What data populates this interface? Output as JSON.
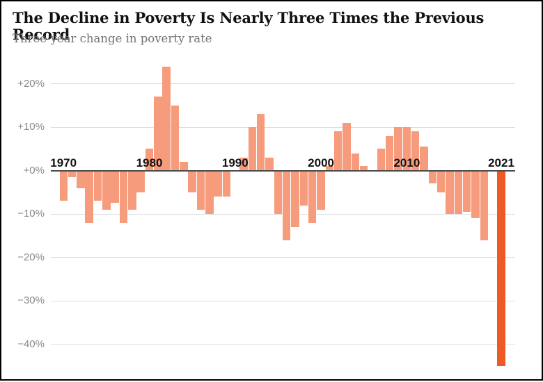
{
  "header": {
    "title": "The Decline in Poverty Is Nearly Three Times the Previous Record",
    "subtitle": "Three-year change in poverty rate"
  },
  "theme": {
    "bar_color": "#f69c7d",
    "highlight_color": "#ee5a23",
    "gridline_color": "#dcdcdc",
    "zero_line_color": "#4b4b4b",
    "title_color": "#121212",
    "subtitle_color": "#737373",
    "axis_tick_color": "#8a8a8a",
    "year_label_color": "#121212",
    "border_color": "#000000"
  },
  "chart_data": {
    "type": "bar",
    "title": "The Decline in Poverty Is Nearly Three Times the Previous Record",
    "subtitle": "Three-year change in poverty rate",
    "xlabel": "",
    "ylabel": "Three-year change in poverty rate (%)",
    "ylim": [
      -47,
      26
    ],
    "grid": "horizontal",
    "legend": "none",
    "highlight_year": 2021,
    "missing_years": [
      2020
    ],
    "yticks": [
      {
        "value": 20,
        "label": "+20%"
      },
      {
        "value": 10,
        "label": "+10%"
      },
      {
        "value": 0,
        "label": "+0%"
      },
      {
        "value": -10,
        "label": "−10%"
      },
      {
        "value": -20,
        "label": "−20%"
      },
      {
        "value": -30,
        "label": "−30%"
      },
      {
        "value": -40,
        "label": "−40%"
      }
    ],
    "x_axis_year_labels": [
      1970,
      1980,
      1990,
      2000,
      2010,
      2021
    ],
    "points": [
      {
        "year": 1970,
        "value": -7
      },
      {
        "year": 1971,
        "value": -1.5
      },
      {
        "year": 1972,
        "value": -4
      },
      {
        "year": 1973,
        "value": -12
      },
      {
        "year": 1974,
        "value": -7
      },
      {
        "year": 1975,
        "value": -9
      },
      {
        "year": 1976,
        "value": -7.5
      },
      {
        "year": 1977,
        "value": -12
      },
      {
        "year": 1978,
        "value": -9
      },
      {
        "year": 1979,
        "value": -5
      },
      {
        "year": 1980,
        "value": 5
      },
      {
        "year": 1981,
        "value": 17
      },
      {
        "year": 1982,
        "value": 24
      },
      {
        "year": 1983,
        "value": 15
      },
      {
        "year": 1984,
        "value": 2
      },
      {
        "year": 1985,
        "value": -5
      },
      {
        "year": 1986,
        "value": -9
      },
      {
        "year": 1987,
        "value": -10
      },
      {
        "year": 1988,
        "value": -6
      },
      {
        "year": 1989,
        "value": -6
      },
      {
        "year": 1990,
        "value": 0
      },
      {
        "year": 1991,
        "value": 3
      },
      {
        "year": 1992,
        "value": 10
      },
      {
        "year": 1993,
        "value": 13
      },
      {
        "year": 1994,
        "value": 3
      },
      {
        "year": 1995,
        "value": -10
      },
      {
        "year": 1996,
        "value": -16
      },
      {
        "year": 1997,
        "value": -13
      },
      {
        "year": 1998,
        "value": -8
      },
      {
        "year": 1999,
        "value": -12
      },
      {
        "year": 2000,
        "value": -9
      },
      {
        "year": 2001,
        "value": 1
      },
      {
        "year": 2002,
        "value": 9
      },
      {
        "year": 2003,
        "value": 11
      },
      {
        "year": 2004,
        "value": 4
      },
      {
        "year": 2005,
        "value": 1
      },
      {
        "year": 2006,
        "value": 0
      },
      {
        "year": 2007,
        "value": 5
      },
      {
        "year": 2008,
        "value": 8
      },
      {
        "year": 2009,
        "value": 10
      },
      {
        "year": 2010,
        "value": 10
      },
      {
        "year": 2011,
        "value": 9
      },
      {
        "year": 2012,
        "value": 5.5
      },
      {
        "year": 2013,
        "value": -3
      },
      {
        "year": 2014,
        "value": -5
      },
      {
        "year": 2015,
        "value": -10
      },
      {
        "year": 2016,
        "value": -10
      },
      {
        "year": 2017,
        "value": -9.5
      },
      {
        "year": 2018,
        "value": -11
      },
      {
        "year": 2019,
        "value": -16
      },
      {
        "year": 2021,
        "value": -45
      }
    ]
  }
}
